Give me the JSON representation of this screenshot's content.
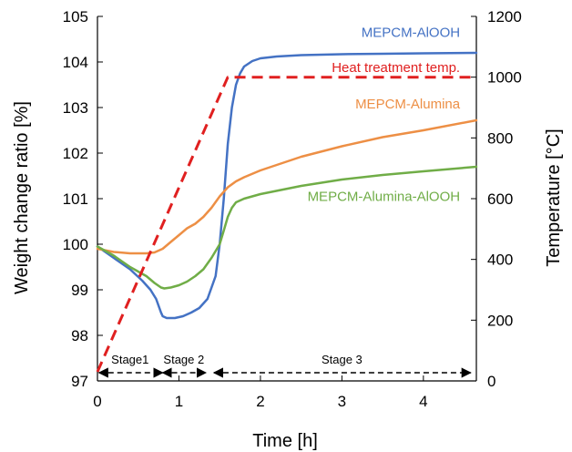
{
  "chart_data": {
    "type": "line",
    "xlabel": "Time [h]",
    "ylabel": "Weight change ratio [%]",
    "y2label": "Temperature [°C]",
    "xlim": [
      0,
      4.65
    ],
    "ylim": [
      97,
      105
    ],
    "y2lim": [
      0,
      1200
    ],
    "xticks": [
      0,
      1,
      2,
      3,
      4
    ],
    "yticks": [
      97,
      98,
      99,
      100,
      101,
      102,
      103,
      104,
      105
    ],
    "y2ticks": [
      0,
      200,
      400,
      600,
      800,
      1000,
      1200
    ],
    "grid": false,
    "series": [
      {
        "name": "MEPCM-AlOOH",
        "color": "#4472c4",
        "axis": "left",
        "x": [
          0,
          0.2,
          0.4,
          0.55,
          0.65,
          0.72,
          0.78,
          0.8,
          0.85,
          0.95,
          1.05,
          1.15,
          1.25,
          1.35,
          1.45,
          1.5,
          1.55,
          1.6,
          1.65,
          1.7,
          1.75,
          1.8,
          1.9,
          2.0,
          2.2,
          2.5,
          3.0,
          3.5,
          4.0,
          4.65
        ],
        "y": [
          99.95,
          99.7,
          99.45,
          99.2,
          99.0,
          98.8,
          98.5,
          98.42,
          98.38,
          98.38,
          98.42,
          98.5,
          98.6,
          98.8,
          99.3,
          100.0,
          101.0,
          102.2,
          103.0,
          103.5,
          103.75,
          103.9,
          104.02,
          104.08,
          104.12,
          104.15,
          104.17,
          104.18,
          104.19,
          104.2
        ]
      },
      {
        "name": "MEPCM-Alumina",
        "color": "#ed8f45",
        "axis": "left",
        "x": [
          0,
          0.2,
          0.4,
          0.6,
          0.7,
          0.8,
          0.9,
          1.0,
          1.1,
          1.2,
          1.3,
          1.4,
          1.5,
          1.6,
          1.7,
          1.8,
          2.0,
          2.5,
          3.0,
          3.5,
          4.0,
          4.65
        ],
        "y": [
          99.9,
          99.83,
          99.8,
          99.8,
          99.82,
          99.9,
          100.05,
          100.2,
          100.35,
          100.45,
          100.6,
          100.8,
          101.05,
          101.25,
          101.38,
          101.47,
          101.62,
          101.92,
          102.15,
          102.35,
          102.5,
          102.72
        ]
      },
      {
        "name": "MEPCM-Alumina-AlOOH",
        "color": "#70ad47",
        "axis": "left",
        "x": [
          0,
          0.2,
          0.4,
          0.6,
          0.7,
          0.78,
          0.82,
          0.9,
          1.0,
          1.1,
          1.2,
          1.3,
          1.4,
          1.5,
          1.55,
          1.6,
          1.65,
          1.7,
          1.8,
          2.0,
          2.5,
          3.0,
          3.5,
          4.0,
          4.65
        ],
        "y": [
          99.95,
          99.75,
          99.5,
          99.3,
          99.15,
          99.05,
          99.03,
          99.05,
          99.1,
          99.18,
          99.3,
          99.45,
          99.7,
          100.0,
          100.3,
          100.6,
          100.8,
          100.92,
          101.0,
          101.1,
          101.28,
          101.42,
          101.52,
          101.6,
          101.7
        ]
      },
      {
        "name": "Heat treatment temp.",
        "color": "#e02020",
        "axis": "right",
        "dash": true,
        "x": [
          0,
          1.6,
          4.65
        ],
        "y": [
          30,
          1000,
          1000
        ]
      }
    ],
    "series_labels": [
      {
        "text": "MEPCM-AlOOH",
        "series": 0,
        "x": 4.45,
        "y": 104.55
      },
      {
        "text": "Heat treatment temp.",
        "series": 3,
        "x": 4.45,
        "y": 103.78
      },
      {
        "text": "MEPCM-Alumina",
        "series": 1,
        "x": 4.45,
        "y": 102.98
      },
      {
        "text": "MEPCM-Alumina-AlOOH",
        "series": 2,
        "x": 4.45,
        "y": 100.95
      }
    ],
    "stages": [
      {
        "label": "Stage1",
        "x_start": 0.02,
        "x_end": 0.8,
        "label_x": 0.4
      },
      {
        "label": "Stage 2",
        "x_start": 0.8,
        "x_end": 1.33,
        "label_x": 1.06
      },
      {
        "label": "Stage 3",
        "x_start": 1.43,
        "x_end": 4.58,
        "label_x": 3.0
      }
    ],
    "stage_y": 97.18,
    "stage_label_y": 97.38
  }
}
